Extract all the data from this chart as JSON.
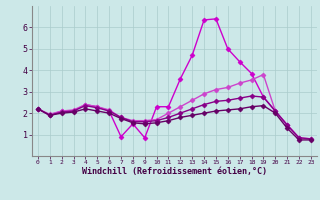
{
  "bg_color": "#cce8e8",
  "grid_color": "#aacccc",
  "xlabel": "Windchill (Refroidissement éolien,°C)",
  "xlim": [
    -0.5,
    23.5
  ],
  "ylim": [
    0,
    7
  ],
  "yticks": [
    1,
    2,
    3,
    4,
    5,
    6
  ],
  "xticks": [
    0,
    1,
    2,
    3,
    4,
    5,
    6,
    7,
    8,
    9,
    10,
    11,
    12,
    13,
    14,
    15,
    16,
    17,
    18,
    19,
    20,
    21,
    22,
    23
  ],
  "lines": [
    {
      "x": [
        0,
        1,
        2,
        3,
        4,
        5,
        6,
        7,
        8,
        9,
        10,
        11,
        12,
        13,
        14,
        15,
        16,
        17,
        18,
        19,
        20,
        21,
        22
      ],
      "y": [
        2.2,
        1.9,
        2.1,
        2.1,
        2.4,
        2.3,
        2.1,
        0.9,
        1.5,
        0.85,
        2.3,
        2.3,
        3.6,
        4.7,
        6.35,
        6.4,
        5.0,
        4.4,
        3.85,
        2.75,
        2.1,
        1.45,
        0.85
      ],
      "color": "#cc00cc",
      "lw": 1.0
    },
    {
      "x": [
        0,
        1,
        2,
        3,
        4,
        5,
        6,
        7,
        8,
        9,
        10,
        11,
        12,
        13,
        14,
        15,
        16,
        17,
        18,
        19,
        20,
        21,
        22,
        23
      ],
      "y": [
        2.2,
        1.95,
        2.1,
        2.15,
        2.4,
        2.3,
        2.15,
        1.8,
        1.65,
        1.65,
        1.7,
        2.0,
        2.3,
        2.6,
        2.9,
        3.1,
        3.2,
        3.4,
        3.55,
        3.8,
        2.1,
        1.45,
        0.85,
        0.8
      ],
      "color": "#cc44cc",
      "lw": 1.0
    },
    {
      "x": [
        0,
        1,
        2,
        3,
        4,
        5,
        6,
        7,
        8,
        9,
        10,
        11,
        12,
        13,
        14,
        15,
        16,
        17,
        18,
        19,
        20,
        21,
        22,
        23
      ],
      "y": [
        2.2,
        1.9,
        2.05,
        2.1,
        2.35,
        2.25,
        2.1,
        1.8,
        1.6,
        1.6,
        1.65,
        1.8,
        2.0,
        2.2,
        2.4,
        2.55,
        2.6,
        2.7,
        2.8,
        2.75,
        2.1,
        1.45,
        0.85,
        0.8
      ],
      "color": "#880088",
      "lw": 1.0
    },
    {
      "x": [
        0,
        1,
        2,
        3,
        4,
        5,
        6,
        7,
        8,
        9,
        10,
        11,
        12,
        13,
        14,
        15,
        16,
        17,
        18,
        19,
        20,
        21,
        22,
        23
      ],
      "y": [
        2.2,
        1.9,
        2.0,
        2.05,
        2.2,
        2.1,
        2.0,
        1.75,
        1.55,
        1.5,
        1.55,
        1.65,
        1.8,
        1.9,
        2.0,
        2.1,
        2.15,
        2.2,
        2.3,
        2.35,
        2.0,
        1.3,
        0.75,
        0.75
      ],
      "color": "#660066",
      "lw": 1.0
    }
  ]
}
